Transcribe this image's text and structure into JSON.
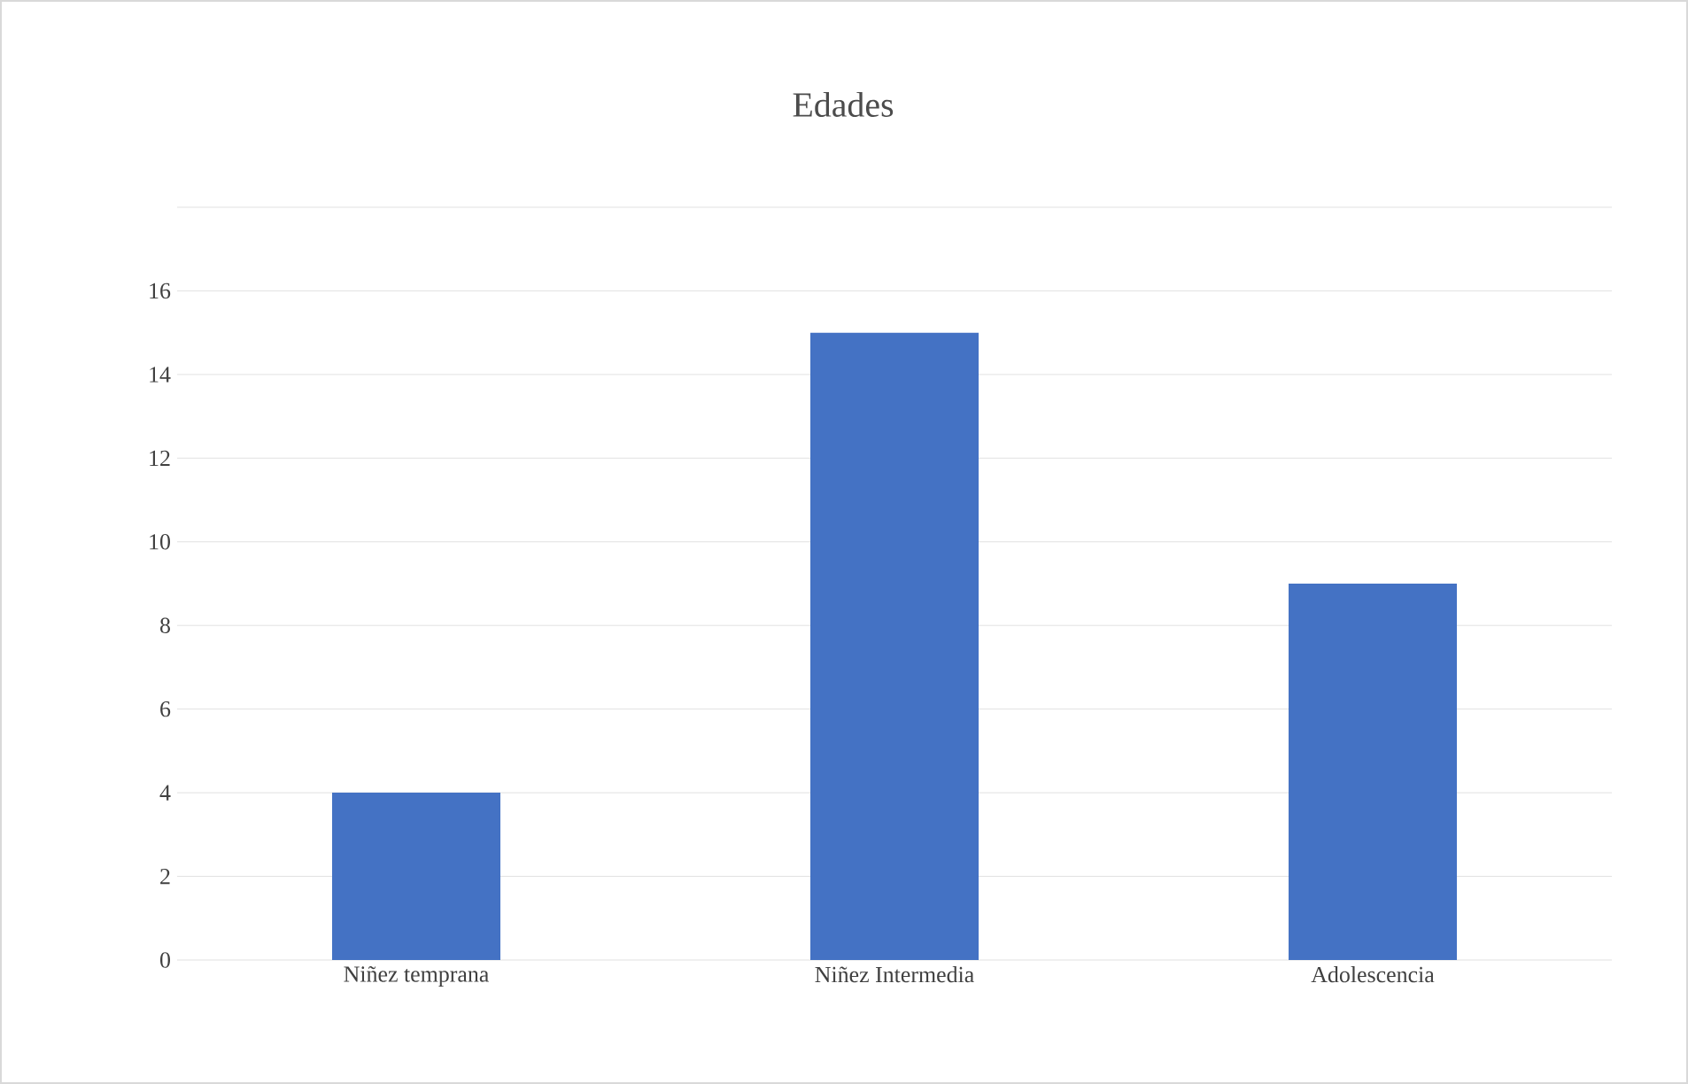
{
  "chart_data": {
    "type": "bar",
    "title": "Edades",
    "categories": [
      "Niñez temprana",
      "Niñez Intermedia",
      "Adolescencia"
    ],
    "values": [
      4,
      15,
      9
    ],
    "color": "#4472c4",
    "ylim": [
      0,
      18
    ],
    "yticks": [
      0,
      2,
      4,
      6,
      8,
      10,
      12,
      14,
      16,
      {
        "value": 18,
        "label": null
      }
    ],
    "grid": "y"
  }
}
